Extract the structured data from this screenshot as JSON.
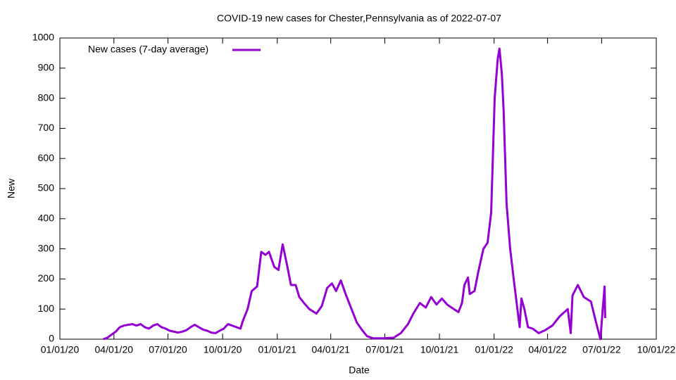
{
  "chart_data": {
    "type": "line",
    "title": "COVID-19 new cases for Chester,Pennsylvania as of 2022-07-07",
    "x_label": "Date",
    "y_label": "New",
    "legend": "top-left",
    "xlim": [
      "2020-01-01",
      "2022-10-01"
    ],
    "xticks": [
      {
        "value": "2020-01-01",
        "label": "01/01/20"
      },
      {
        "value": "2020-04-01",
        "label": "04/01/20"
      },
      {
        "value": "2020-07-01",
        "label": "07/01/20"
      },
      {
        "value": "2020-10-01",
        "label": "10/01/20"
      },
      {
        "value": "2021-01-01",
        "label": "01/01/21"
      },
      {
        "value": "2021-04-01",
        "label": "04/01/21"
      },
      {
        "value": "2021-07-01",
        "label": "07/01/21"
      },
      {
        "value": "2021-10-01",
        "label": "10/01/21"
      },
      {
        "value": "2022-01-01",
        "label": "01/01/22"
      },
      {
        "value": "2022-04-01",
        "label": "04/01/22"
      },
      {
        "value": "2022-07-01",
        "label": "07/01/22"
      },
      {
        "value": "2022-10-01",
        "label": "10/01/22"
      }
    ],
    "ylim": [
      0,
      1000
    ],
    "yticks": [
      0,
      100,
      200,
      300,
      400,
      500,
      600,
      700,
      800,
      900,
      1000
    ],
    "x": [
      "2020-03-14",
      "2020-03-21",
      "2020-03-28",
      "2020-04-04",
      "2020-04-11",
      "2020-04-18",
      "2020-04-25",
      "2020-05-02",
      "2020-05-09",
      "2020-05-16",
      "2020-05-23",
      "2020-05-30",
      "2020-06-06",
      "2020-06-13",
      "2020-06-20",
      "2020-06-27",
      "2020-07-04",
      "2020-07-11",
      "2020-07-18",
      "2020-07-25",
      "2020-08-01",
      "2020-08-08",
      "2020-08-15",
      "2020-08-22",
      "2020-08-29",
      "2020-09-05",
      "2020-09-12",
      "2020-09-19",
      "2020-09-26",
      "2020-10-03",
      "2020-10-10",
      "2020-10-17",
      "2020-10-24",
      "2020-10-31",
      "2020-11-04",
      "2020-11-12",
      "2020-11-19",
      "2020-11-28",
      "2020-12-05",
      "2020-12-12",
      "2020-12-18",
      "2020-12-27",
      "2021-01-03",
      "2021-01-10",
      "2021-01-17",
      "2021-01-24",
      "2021-02-01",
      "2021-02-07",
      "2021-02-15",
      "2021-02-24",
      "2021-03-08",
      "2021-03-17",
      "2021-03-26",
      "2021-04-03",
      "2021-04-10",
      "2021-04-18",
      "2021-04-26",
      "2021-05-06",
      "2021-05-15",
      "2021-05-24",
      "2021-06-01",
      "2021-06-11",
      "2021-06-28",
      "2021-07-16",
      "2021-07-28",
      "2021-08-09",
      "2021-08-18",
      "2021-08-29",
      "2021-09-08",
      "2021-09-17",
      "2021-09-26",
      "2021-10-05",
      "2021-10-14",
      "2021-10-25",
      "2021-11-02",
      "2021-11-08",
      "2021-11-12",
      "2021-11-18",
      "2021-11-21",
      "2021-11-29",
      "2021-12-05",
      "2021-12-14",
      "2021-12-21",
      "2021-12-27",
      "2022-01-02",
      "2022-01-07",
      "2022-01-10",
      "2022-01-14",
      "2022-01-17",
      "2022-01-22",
      "2022-01-28",
      "2022-02-03",
      "2022-02-08",
      "2022-02-13",
      "2022-02-16",
      "2022-02-21",
      "2022-02-27",
      "2022-03-07",
      "2022-03-17",
      "2022-03-28",
      "2022-04-09",
      "2022-04-21",
      "2022-05-05",
      "2022-05-10",
      "2022-05-13",
      "2022-05-22",
      "2022-06-01",
      "2022-06-13",
      "2022-06-21",
      "2022-06-29",
      "2022-07-03",
      "2022-07-06",
      "2022-07-07"
    ],
    "series": [
      {
        "name": "New cases (7-day average)",
        "color": "#9400d3",
        "values": [
          0,
          5,
          15,
          25,
          40,
          45,
          48,
          50,
          45,
          50,
          40,
          35,
          45,
          50,
          40,
          35,
          28,
          25,
          22,
          25,
          30,
          40,
          48,
          40,
          32,
          28,
          22,
          20,
          28,
          35,
          50,
          45,
          40,
          35,
          60,
          100,
          160,
          175,
          290,
          280,
          290,
          240,
          230,
          315,
          250,
          180,
          180,
          140,
          120,
          100,
          85,
          110,
          170,
          185,
          160,
          195,
          150,
          100,
          55,
          30,
          10,
          3,
          3,
          5,
          20,
          50,
          85,
          120,
          105,
          140,
          115,
          135,
          115,
          100,
          90,
          120,
          180,
          205,
          150,
          160,
          220,
          300,
          320,
          420,
          800,
          930,
          965,
          880,
          760,
          450,
          300,
          200,
          120,
          40,
          135,
          100,
          40,
          35,
          20,
          30,
          45,
          75,
          100,
          20,
          145,
          180,
          140,
          125,
          60,
          0,
          105,
          175,
          70
        ]
      }
    ]
  }
}
